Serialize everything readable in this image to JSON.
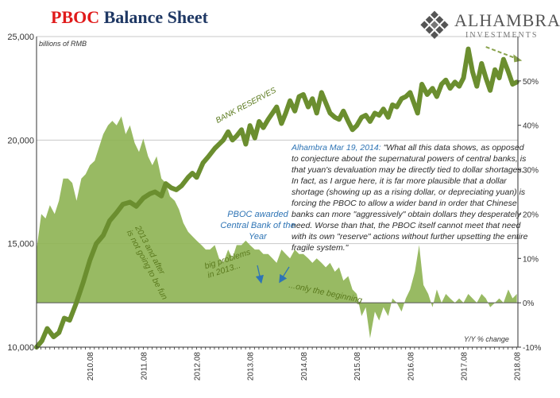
{
  "title": {
    "part1": "PBOC",
    "part2": " Balance Sheet"
  },
  "logo": {
    "name": "ALHAMBRA",
    "sub": "INVESTMENTS",
    "icon": "diamond-lattice-icon"
  },
  "colors": {
    "area": "#8db352",
    "line": "#6b8e2f",
    "axis": "#333333",
    "grid": "#c8c8c8"
  },
  "quote": {
    "source": "Alhambra Mar 19, 2014:",
    "text": " \"What all this data shows, as opposed to conjecture about the supernatural powers of central banks, is that yuan's devaluation may be directly tied to dollar shortages. In fact, as I argue here, it is far more plausible that a dollar shortage (showing up as a rising dollar, or depreciating yuan) is forcing the PBOC to allow a wider band in order that Chinese banks can more \"aggressively\" obtain dollars they desperately need. Worse than that, the PBOC itself cannot meet that need with its own \"reserve\" actions without further upsetting the entire fragile system.\""
  },
  "annotations": {
    "bank_reserves": "BANK RESERVES",
    "fun": "2013 and after\nis not going to be fun",
    "problems": "big problems\nin 2013...",
    "award": "PBOC awarded Central Bank of the Year",
    "beginning": "...only the beginning"
  },
  "chart_data": {
    "type": "line",
    "ylabel": "billions of RMB",
    "ylabel_right": "Y/Y % change",
    "ylim": [
      10000,
      25000
    ],
    "ylim_right": [
      -10,
      60
    ],
    "left_ticks": [
      "10,000",
      "15,000",
      "20,000",
      "25,000"
    ],
    "left_tick_values": [
      10000,
      15000,
      20000,
      25000
    ],
    "right_ticks": [
      "-10%",
      "0%",
      "10%",
      "20%",
      "30%",
      "40%",
      "50%"
    ],
    "right_tick_values": [
      -10,
      0,
      10,
      20,
      30,
      40,
      50
    ],
    "x_ticks": [
      "2010.08",
      "2011.08",
      "2012.08",
      "2013.08",
      "2014.08",
      "2015.08",
      "2016.08",
      "2017.08",
      "2018.08"
    ],
    "x_tick_values": [
      2010.58,
      2011.58,
      2012.58,
      2013.58,
      2014.58,
      2015.58,
      2016.58,
      2017.58,
      2018.58
    ],
    "xlim": [
      2009.58,
      2018.6
    ],
    "series": [
      {
        "name": "BANK RESERVES",
        "axis": "left",
        "x": [
          2009.58,
          2009.68,
          2009.78,
          2009.9,
          2010.0,
          2010.1,
          2010.2,
          2010.32,
          2010.45,
          2010.58,
          2010.7,
          2010.83,
          2010.95,
          2011.08,
          2011.2,
          2011.33,
          2011.45,
          2011.58,
          2011.7,
          2011.8,
          2011.92,
          2012.0,
          2012.1,
          2012.2,
          2012.3,
          2012.42,
          2012.5,
          2012.58,
          2012.7,
          2012.8,
          2012.92,
          2013.0,
          2013.08,
          2013.17,
          2013.25,
          2013.33,
          2013.42,
          2013.5,
          2013.58,
          2013.67,
          2013.75,
          2013.83,
          2013.92,
          2014.0,
          2014.08,
          2014.17,
          2014.25,
          2014.33,
          2014.42,
          2014.5,
          2014.58,
          2014.67,
          2014.75,
          2014.83,
          2014.92,
          2015.0,
          2015.08,
          2015.17,
          2015.25,
          2015.33,
          2015.42,
          2015.5,
          2015.58,
          2015.67,
          2015.75,
          2015.83,
          2015.92,
          2016.0,
          2016.08,
          2016.17,
          2016.25,
          2016.33,
          2016.42,
          2016.5,
          2016.58,
          2016.65,
          2016.72,
          2016.8,
          2016.9,
          2017.0,
          2017.08,
          2017.17,
          2017.25,
          2017.33,
          2017.42,
          2017.5,
          2017.58,
          2017.67,
          2017.75,
          2017.83,
          2017.92,
          2018.0,
          2018.08,
          2018.17,
          2018.25,
          2018.33,
          2018.42,
          2018.5,
          2018.58
        ],
        "values": [
          10000,
          10300,
          10900,
          10500,
          10700,
          11400,
          11300,
          12100,
          13100,
          14200,
          15000,
          15400,
          16100,
          16500,
          16900,
          17000,
          16800,
          17200,
          17400,
          17500,
          17300,
          17900,
          17700,
          17600,
          17800,
          18200,
          18400,
          18200,
          18900,
          19200,
          19600,
          19800,
          20000,
          20400,
          20000,
          20200,
          20500,
          19800,
          20700,
          20100,
          20900,
          20600,
          21000,
          21300,
          21600,
          20800,
          21300,
          21900,
          21400,
          22100,
          22200,
          21600,
          22000,
          21300,
          22300,
          21800,
          21300,
          21100,
          21000,
          21400,
          20900,
          20500,
          20700,
          21100,
          21200,
          20900,
          21300,
          21200,
          21500,
          21100,
          21700,
          21600,
          22000,
          22100,
          22300,
          21800,
          21300,
          22700,
          22200,
          22500,
          22100,
          22700,
          22900,
          22500,
          22800,
          22600,
          23000,
          24400,
          23300,
          22600,
          23700,
          23000,
          22400,
          23400,
          23000,
          23900,
          23300,
          22700,
          22800
        ]
      },
      {
        "name": "",
        "axis": "right",
        "x": [
          2009.58,
          2009.67,
          2009.75,
          2009.83,
          2009.92,
          2010.0,
          2010.08,
          2010.17,
          2010.25,
          2010.33,
          2010.42,
          2010.5,
          2010.58,
          2010.67,
          2010.75,
          2010.83,
          2010.92,
          2011.0,
          2011.08,
          2011.17,
          2011.25,
          2011.33,
          2011.42,
          2011.5,
          2011.58,
          2011.67,
          2011.75,
          2011.83,
          2011.92,
          2012.0,
          2012.08,
          2012.17,
          2012.25,
          2012.33,
          2012.42,
          2012.5,
          2012.58,
          2012.67,
          2012.75,
          2012.83,
          2012.92,
          2013.0,
          2013.08,
          2013.17,
          2013.25,
          2013.33,
          2013.42,
          2013.5,
          2013.58,
          2013.67,
          2013.75,
          2013.83,
          2013.92,
          2014.0,
          2014.08,
          2014.17,
          2014.25,
          2014.33,
          2014.42,
          2014.5,
          2014.58,
          2014.67,
          2014.75,
          2014.83,
          2014.92,
          2015.0,
          2015.08,
          2015.17,
          2015.25,
          2015.33,
          2015.42,
          2015.5,
          2015.58,
          2015.67,
          2015.75,
          2015.83,
          2015.92,
          2016.0,
          2016.08,
          2016.17,
          2016.25,
          2016.33,
          2016.42,
          2016.5,
          2016.58,
          2016.67,
          2016.75,
          2016.83,
          2016.92,
          2017.0,
          2017.08,
          2017.17,
          2017.25,
          2017.33,
          2017.42,
          2017.5,
          2017.58,
          2017.67,
          2017.75,
          2017.83,
          2017.92,
          2018.0,
          2018.08,
          2018.17,
          2018.25,
          2018.33,
          2018.42,
          2018.5,
          2018.58
        ],
        "values": [
          12,
          20,
          19,
          22,
          20,
          23,
          28,
          28,
          27,
          23,
          28,
          29,
          31,
          32,
          35,
          38,
          40,
          41,
          40,
          42,
          38,
          40,
          36,
          34,
          37,
          33,
          31,
          33,
          28,
          27,
          24,
          23,
          21,
          18,
          16,
          15,
          14,
          13,
          12,
          12,
          13,
          10,
          9,
          12,
          10,
          13,
          13,
          14,
          13,
          12,
          12,
          11,
          11,
          10,
          9,
          12,
          11,
          10,
          12,
          11,
          11,
          10,
          9,
          10,
          9,
          8,
          9,
          7,
          8,
          5,
          6,
          3,
          2,
          -3,
          -1,
          -8,
          -2,
          -4,
          -1,
          -3,
          1,
          0,
          -2,
          1,
          3,
          7,
          13,
          4,
          2,
          -1,
          3,
          0,
          2,
          1,
          0,
          1,
          0,
          2,
          1,
          0,
          2,
          1,
          -1,
          0,
          1,
          0,
          3,
          1,
          2
        ]
      }
    ]
  }
}
